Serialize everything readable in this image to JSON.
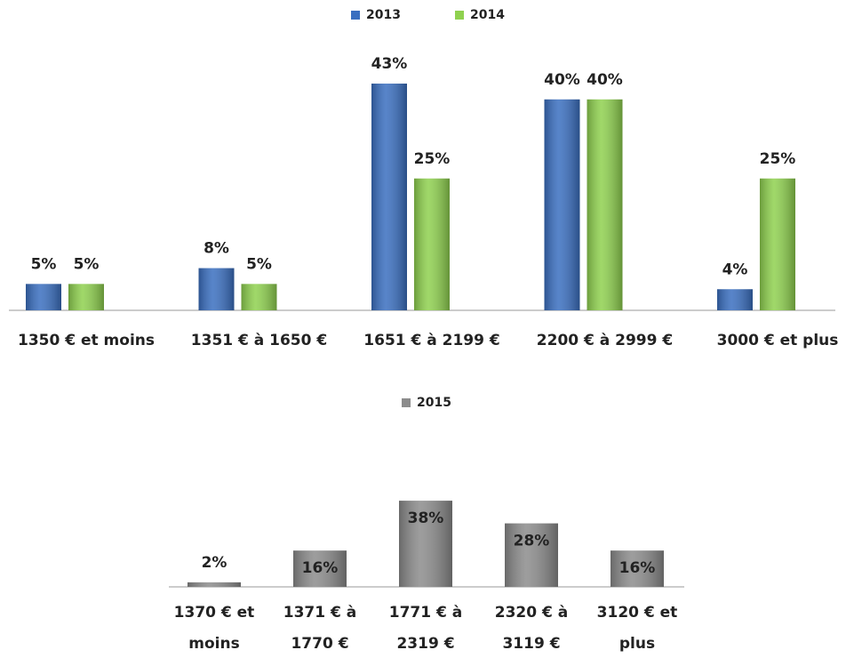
{
  "chart_data": [
    {
      "type": "bar",
      "categories": [
        "1350 € et moins",
        "1351 € à 1650 €",
        "1651 € à 2199 €",
        "2200  € à 2999 €",
        "3000 € et plus"
      ],
      "series": [
        {
          "name": "2013",
          "color": "#3a6fc0",
          "values": [
            5,
            8,
            43,
            40,
            4
          ],
          "value_labels": [
            "5%",
            "8%",
            "43%",
            "40%",
            "4%"
          ]
        },
        {
          "name": "2014",
          "color": "#8fd14f",
          "values": [
            5,
            5,
            25,
            40,
            25
          ],
          "value_labels": [
            "5%",
            "5%",
            "25%",
            "40%",
            "25%"
          ]
        }
      ]
    },
    {
      "type": "bar",
      "categories": [
        "1370 € et moins",
        "1371 € à 1770 €",
        "1771 € à 2319 €",
        "2320 € à 3119 €",
        "3120 € et plus"
      ],
      "series": [
        {
          "name": "2015",
          "color": "#8c8c8c",
          "values": [
            2,
            16,
            38,
            28,
            16
          ],
          "value_labels": [
            "2%",
            "16%",
            "38%",
            "28%",
            "16%"
          ]
        }
      ]
    }
  ]
}
